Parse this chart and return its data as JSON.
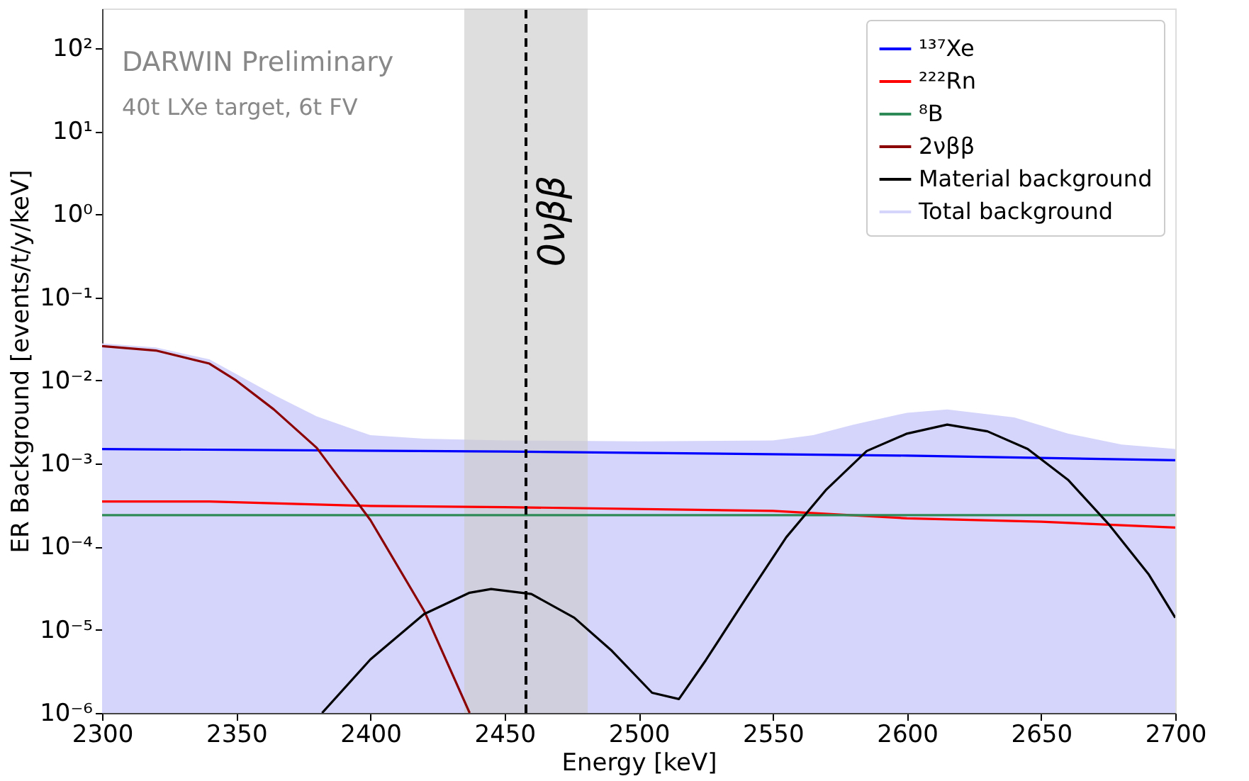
{
  "chart_data": {
    "type": "line",
    "xlabel": "Energy [keV]",
    "ylabel": "ER Background [events/t/y/keV]",
    "log": "y",
    "grid": false,
    "legend": "top right",
    "marker": "none",
    "line_style": "solid",
    "xlim": [
      2300,
      2700
    ],
    "xticks": [
      2300,
      2350,
      2400,
      2450,
      2500,
      2550,
      2600,
      2650,
      2700
    ],
    "ylim": [
      1e-06,
      300
    ],
    "yticks": [
      {
        "value": 1e-06,
        "label": "10⁻⁶"
      },
      {
        "value": 1e-05,
        "label": "10⁻⁵"
      },
      {
        "value": 0.0001,
        "label": "10⁻⁴"
      },
      {
        "value": 0.001,
        "label": "10⁻³"
      },
      {
        "value": 0.01,
        "label": "10⁻²"
      },
      {
        "value": 0.1,
        "label": "10⁻¹"
      },
      {
        "value": 1,
        "label": "10⁰"
      },
      {
        "value": 10,
        "label": "10¹"
      },
      {
        "value": 100,
        "label": "10²"
      }
    ],
    "series": [
      {
        "name": "¹³⁷Xe",
        "color": "#0000ff",
        "x": [
          2300,
          2450,
          2600,
          2700
        ],
        "values": [
          0.0015,
          0.0014,
          0.00125,
          0.0011
        ]
      },
      {
        "name": "²²²Rn",
        "color": "#ff0000",
        "x": [
          2300,
          2340,
          2400,
          2450,
          2550,
          2600,
          2650,
          2700
        ],
        "values": [
          0.00035,
          0.00035,
          0.00031,
          0.0003,
          0.00027,
          0.00022,
          0.0002,
          0.00017
        ]
      },
      {
        "name": "⁸B",
        "color": "#2e8b57",
        "x": [
          2300,
          2700
        ],
        "values": [
          0.00024,
          0.00024
        ]
      },
      {
        "name": "2νββ",
        "color": "#8b0000",
        "x": [
          2300,
          2320,
          2340,
          2350,
          2364,
          2380,
          2400,
          2420,
          2437
        ],
        "values": [
          0.026,
          0.023,
          0.016,
          0.01,
          0.0045,
          0.00155,
          0.00021,
          1.7e-05,
          1e-06
        ]
      },
      {
        "name": "Material background",
        "color": "#000000",
        "x": [
          2382,
          2400,
          2420,
          2437,
          2445,
          2460,
          2476,
          2490,
          2505,
          2515,
          2525,
          2540,
          2555,
          2570,
          2585,
          2600,
          2615,
          2630,
          2645,
          2660,
          2675,
          2690,
          2700
        ],
        "values": [
          1e-06,
          4.4e-06,
          1.55e-05,
          2.8e-05,
          3.1e-05,
          2.7e-05,
          1.4e-05,
          5.6e-06,
          1.75e-06,
          1.47e-06,
          4.3e-06,
          2.4e-05,
          0.00013,
          0.00049,
          0.00142,
          0.0023,
          0.00295,
          0.00245,
          0.0015,
          0.00064,
          0.00019,
          4.7e-05,
          1.4e-05
        ]
      },
      {
        "name": "Total background",
        "type": "area",
        "color": "#d5d5fb",
        "x": [
          2300,
          2320,
          2340,
          2350,
          2365,
          2380,
          2400,
          2420,
          2450,
          2500,
          2550,
          2565,
          2580,
          2600,
          2615,
          2640,
          2660,
          2680,
          2700
        ],
        "values": [
          0.028,
          0.025,
          0.018,
          0.012,
          0.0065,
          0.0037,
          0.0022,
          0.002,
          0.0019,
          0.00186,
          0.0019,
          0.0022,
          0.00295,
          0.0041,
          0.0045,
          0.0036,
          0.0023,
          0.0017,
          0.0015
        ]
      }
    ],
    "bands": [
      {
        "axis": "x",
        "from": 2435,
        "to": 2481,
        "color": "#cccccc"
      }
    ],
    "ref_lines": [
      {
        "axis": "x",
        "value": 2458,
        "label": "0νββ",
        "color": "#000000",
        "line_style": "dashed"
      }
    ],
    "annotations": [
      "DARWIN Preliminary",
      "40t LXe target, 6t FV"
    ]
  }
}
